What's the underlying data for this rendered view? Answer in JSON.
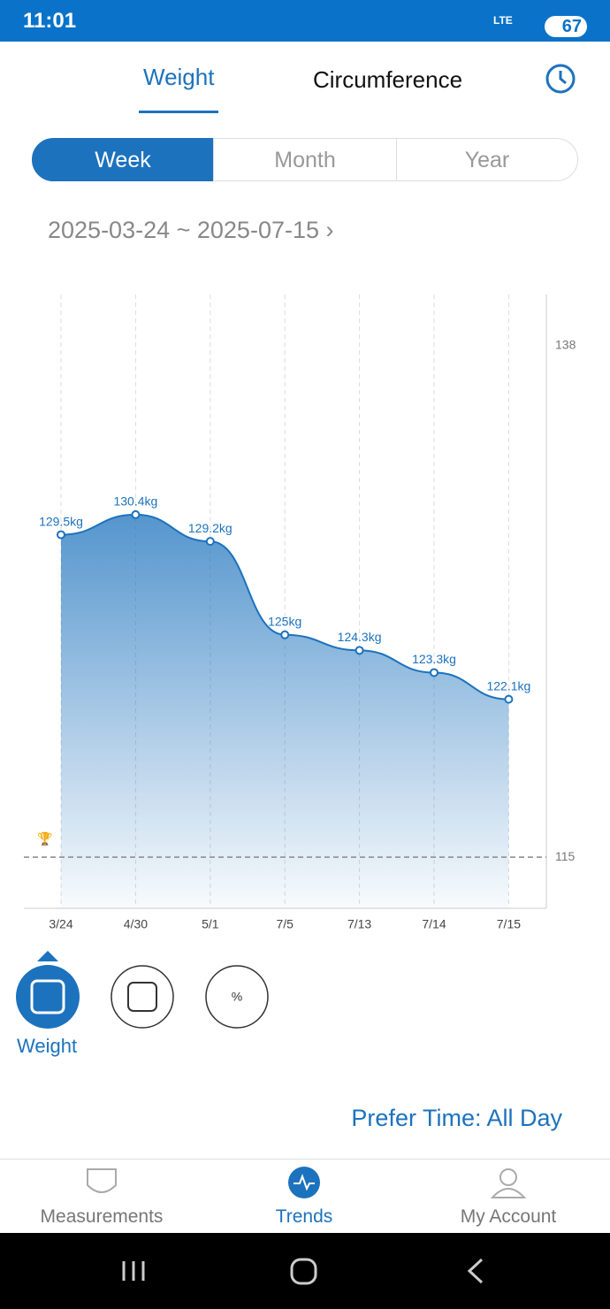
{
  "status_bar": {
    "time": "11:01",
    "network": "LTE",
    "battery": "67"
  },
  "tabs": [
    "Weight",
    "Circumference"
  ],
  "periods": [
    "Week",
    "Month",
    "Year"
  ],
  "date_range": "2025-03-24 ~ 2025-07-15",
  "chart_data": {
    "type": "line",
    "categories": [
      "3/24",
      "4/30",
      "5/1",
      "7/5",
      "7/13",
      "7/14",
      "7/15"
    ],
    "values": [
      129.5,
      130.4,
      129.2,
      125,
      124.3,
      123.3,
      122.1
    ],
    "value_labels": [
      "129.5kg",
      "130.4kg",
      "129.2kg",
      "125kg",
      "124.3kg",
      "123.3kg",
      "122.1kg"
    ],
    "color": "#1c72bd",
    "ylim": [
      112.7,
      140.3
    ],
    "yticks": [
      115,
      138
    ],
    "grid": true,
    "target": 115
  },
  "metric": "Weight",
  "prefer_time": "Prefer Time: All Day",
  "nav": [
    "Measurements",
    "Trends",
    "My Account"
  ]
}
